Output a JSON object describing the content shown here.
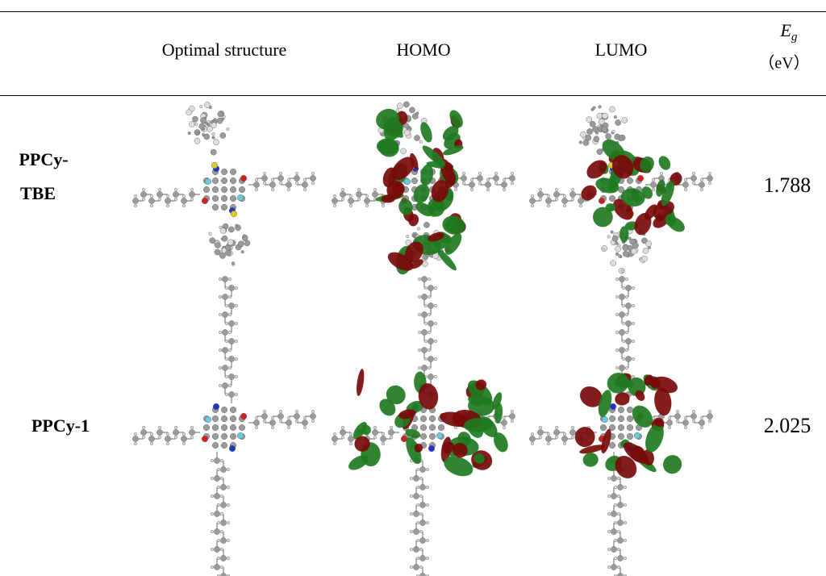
{
  "table": {
    "header": [
      "Optimal structure",
      "HOMO",
      "LUMO"
    ],
    "energy_header": {
      "symbol": "E",
      "subscript": "g",
      "unit": "（eV）"
    },
    "rows": [
      {
        "name_lines": [
          "PPCy-",
          "TBE"
        ],
        "eg": "1.788"
      },
      {
        "name_lines": [
          "PPCy-1"
        ],
        "eg": "2.025"
      }
    ]
  }
}
